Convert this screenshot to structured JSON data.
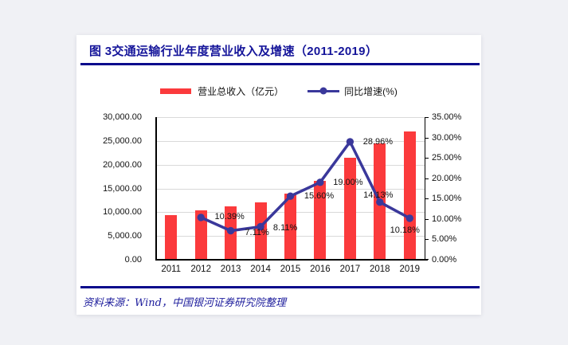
{
  "figure": {
    "title": "图 3交通运输行业年度营业收入及增速（2011-2019）"
  },
  "source": {
    "text": "资料来源：Wind，中国银河证券研究院整理"
  },
  "colors": {
    "title_navy": "#15159a",
    "rule_navy": "#0a0a8c",
    "bar_red": "#fb3a3c",
    "line_indigo": "#3a389b",
    "gridline_gray": "#d9d9d9",
    "axis_black": "#000000",
    "page_background": "#f0f1f5",
    "card_background": "#ffffff"
  },
  "chart_data": {
    "type": "bar+line combo",
    "title": "图 3交通运输行业年度营业收入及增速（2011-2019）",
    "categories": [
      "2011",
      "2012",
      "2013",
      "2014",
      "2015",
      "2016",
      "2017",
      "2018",
      "2019"
    ],
    "series": [
      {
        "name": "营业总收入（亿元）",
        "type": "bar",
        "axis": "left",
        "color": "#fb3a3c",
        "values": [
          9440,
          10440,
          11190,
          12100,
          13990,
          16650,
          21500,
          24500,
          27000
        ]
      },
      {
        "name": "同比增速(%)",
        "type": "line",
        "axis": "right",
        "color": "#3a389b",
        "values": [
          null,
          10.39,
          7.11,
          8.11,
          15.6,
          19.0,
          28.96,
          14.13,
          10.18
        ],
        "point_labels": [
          null,
          "10.39%",
          "7.11%",
          "8.11%",
          "15.60%",
          "19.00%",
          "28.96%",
          "14.13%",
          "10.18%"
        ]
      }
    ],
    "left_axis": {
      "min": 0,
      "max": 30000,
      "step": 5000,
      "tick_labels": [
        "0.00",
        "5,000.00",
        "10,000.00",
        "15,000.00",
        "20,000.00",
        "25,000.00",
        "30,000.00"
      ]
    },
    "right_axis": {
      "min": 0,
      "max": 35,
      "step": 5,
      "tick_labels": [
        "0.00%",
        "5.00%",
        "10.00%",
        "15.00%",
        "20.00%",
        "25.00%",
        "30.00%",
        "35.00%"
      ]
    },
    "grid": "horizontal",
    "legend_position": "top-center"
  }
}
